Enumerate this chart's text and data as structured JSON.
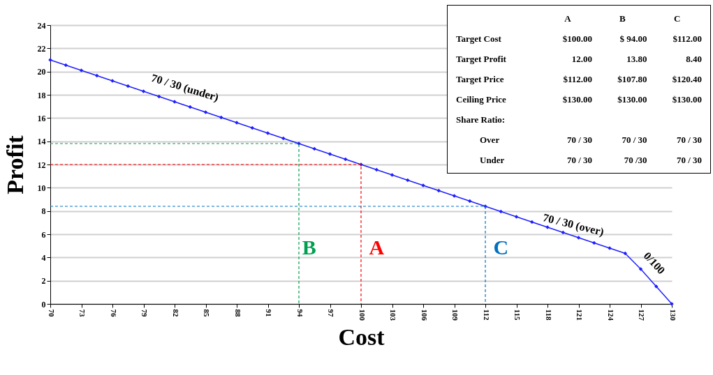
{
  "chart_data": {
    "type": "line",
    "xlabel": "Cost",
    "ylabel": "Profit",
    "xlim": [
      70,
      130
    ],
    "xticks": [
      70,
      73,
      76,
      79,
      82,
      85,
      88,
      91,
      94,
      97,
      100,
      103,
      106,
      109,
      112,
      115,
      118,
      121,
      124,
      127,
      130
    ],
    "ylim": [
      0,
      24
    ],
    "yticks": [
      0,
      2,
      4,
      6,
      8,
      10,
      12,
      14,
      16,
      18,
      20,
      22,
      24
    ],
    "grid": "y",
    "series": [
      {
        "color": "#1f1fff",
        "marker": "diamond",
        "line_style": "solid",
        "x": [
          70,
          71.5,
          73,
          74.5,
          76,
          77.5,
          79,
          80.5,
          82,
          83.5,
          85,
          86.5,
          88,
          89.5,
          91,
          92.5,
          94,
          95.5,
          97,
          98.5,
          100,
          101.5,
          103,
          104.5,
          106,
          107.5,
          109,
          110.5,
          112,
          113.5,
          115,
          116.5,
          118,
          119.5,
          121,
          122.5,
          124,
          125.5,
          127,
          128.5,
          130
        ],
        "values": [
          21,
          20.55,
          20.1,
          19.65,
          19.2,
          18.75,
          18.3,
          17.85,
          17.4,
          16.95,
          16.5,
          16.05,
          15.6,
          15.15,
          14.7,
          14.25,
          13.8,
          13.35,
          12.9,
          12.45,
          12,
          11.55,
          11.1,
          10.65,
          10.2,
          9.75,
          9.3,
          8.85,
          8.4,
          7.95,
          7.5,
          7.05,
          6.6,
          6.15,
          5.7,
          5.25,
          4.8,
          4.35,
          3,
          1.5,
          0
        ]
      },
      {
        "color": "#00a050",
        "marker": "none",
        "line_style": "dashed",
        "x": [
          70,
          94,
          94
        ],
        "values": [
          13.8,
          13.8,
          0
        ]
      },
      {
        "color": "#ff0000",
        "marker": "none",
        "line_style": "dashed",
        "x": [
          70,
          100,
          100
        ],
        "values": [
          12,
          12,
          0
        ]
      },
      {
        "color": "#0070c0",
        "marker": "none",
        "line_style": "dashed",
        "x": [
          70,
          112,
          112
        ],
        "values": [
          8.4,
          8.4,
          0
        ]
      }
    ],
    "annotations": [
      "70 / 30 (under)",
      "70 / 30 (over)",
      "0/100",
      "B",
      "A",
      "C",
      "A",
      "B",
      "C",
      "Target Cost",
      "$100.00",
      "$ 94.00",
      "$112.00",
      "Target Profit",
      "12.00",
      "13.80",
      "8.40",
      "Target Price",
      "$112.00",
      "$107.80",
      "$120.40",
      "Ceiling Price",
      "$130.00",
      "$130.00",
      "$130.00",
      "Share Ratio:",
      "Over",
      "70 / 30",
      "70 / 30",
      "70 / 30",
      "Under",
      "70 / 30",
      "70 /30",
      "70 / 30"
    ]
  }
}
